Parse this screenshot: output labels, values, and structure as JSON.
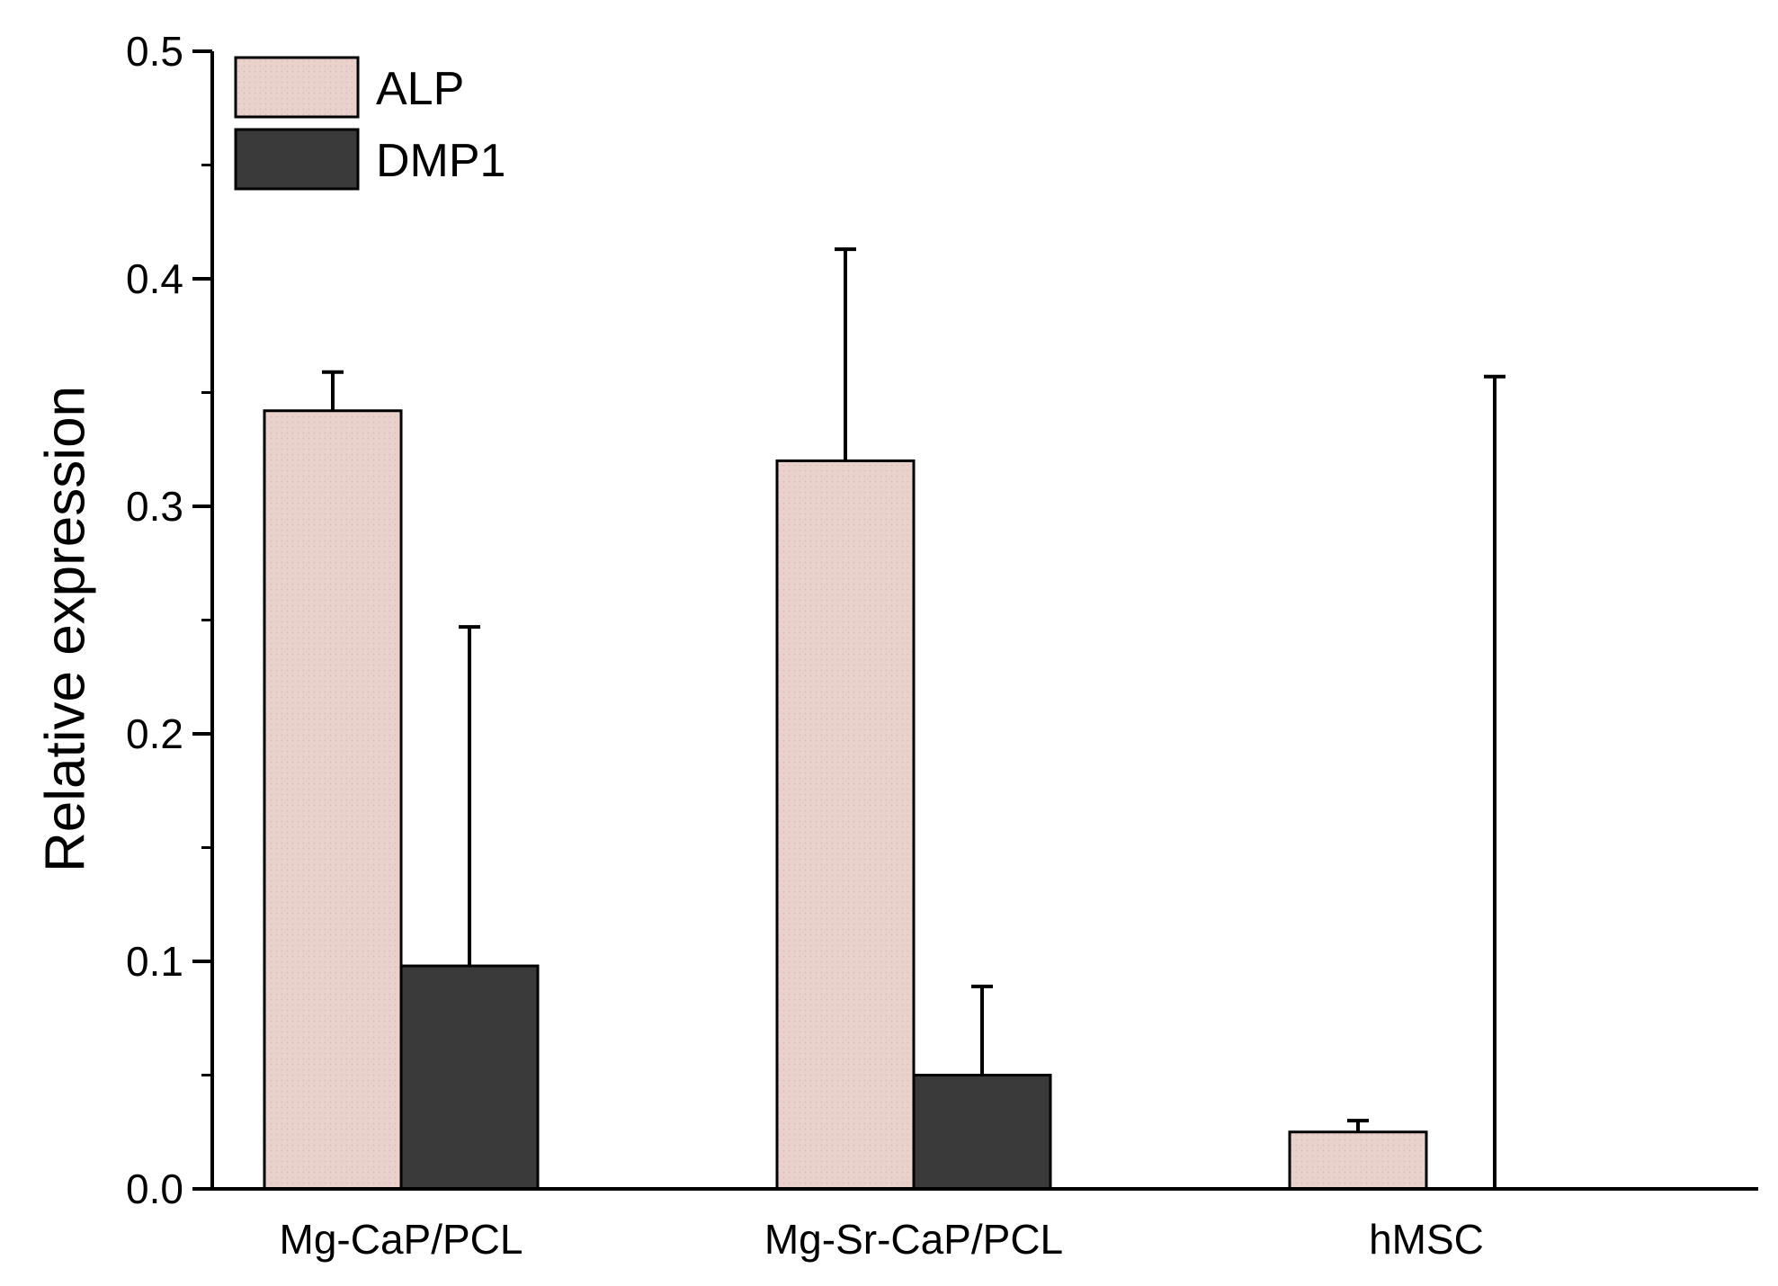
{
  "chart_data": {
    "type": "bar",
    "title": "",
    "xlabel": "",
    "ylabel": "Relative expression",
    "ylim": [
      0,
      0.5
    ],
    "yticks": [
      {
        "value": 0.0,
        "label": "0.0"
      },
      {
        "value": 0.1,
        "label": "0.1"
      },
      {
        "value": 0.2,
        "label": "0.2"
      },
      {
        "value": 0.3,
        "label": "0.3"
      },
      {
        "value": 0.4,
        "label": "0.4"
      },
      {
        "value": 0.5,
        "label": "0.5"
      }
    ],
    "categories": [
      "Mg-CaP/PCL",
      "Mg-Sr-CaP/PCL",
      "hMSC"
    ],
    "series": [
      {
        "name": "ALP",
        "color": "#e8d2cb",
        "values": [
          0.342,
          0.32,
          0.025
        ],
        "errors": [
          0.017,
          0.093,
          0.005
        ]
      },
      {
        "name": "DMP1",
        "color": "#3a3a3a",
        "values": [
          0.098,
          0.05,
          0.0
        ],
        "errors": [
          0.149,
          0.039,
          0.357
        ]
      }
    ],
    "legend": {
      "position": "top-left"
    },
    "grid": false
  }
}
